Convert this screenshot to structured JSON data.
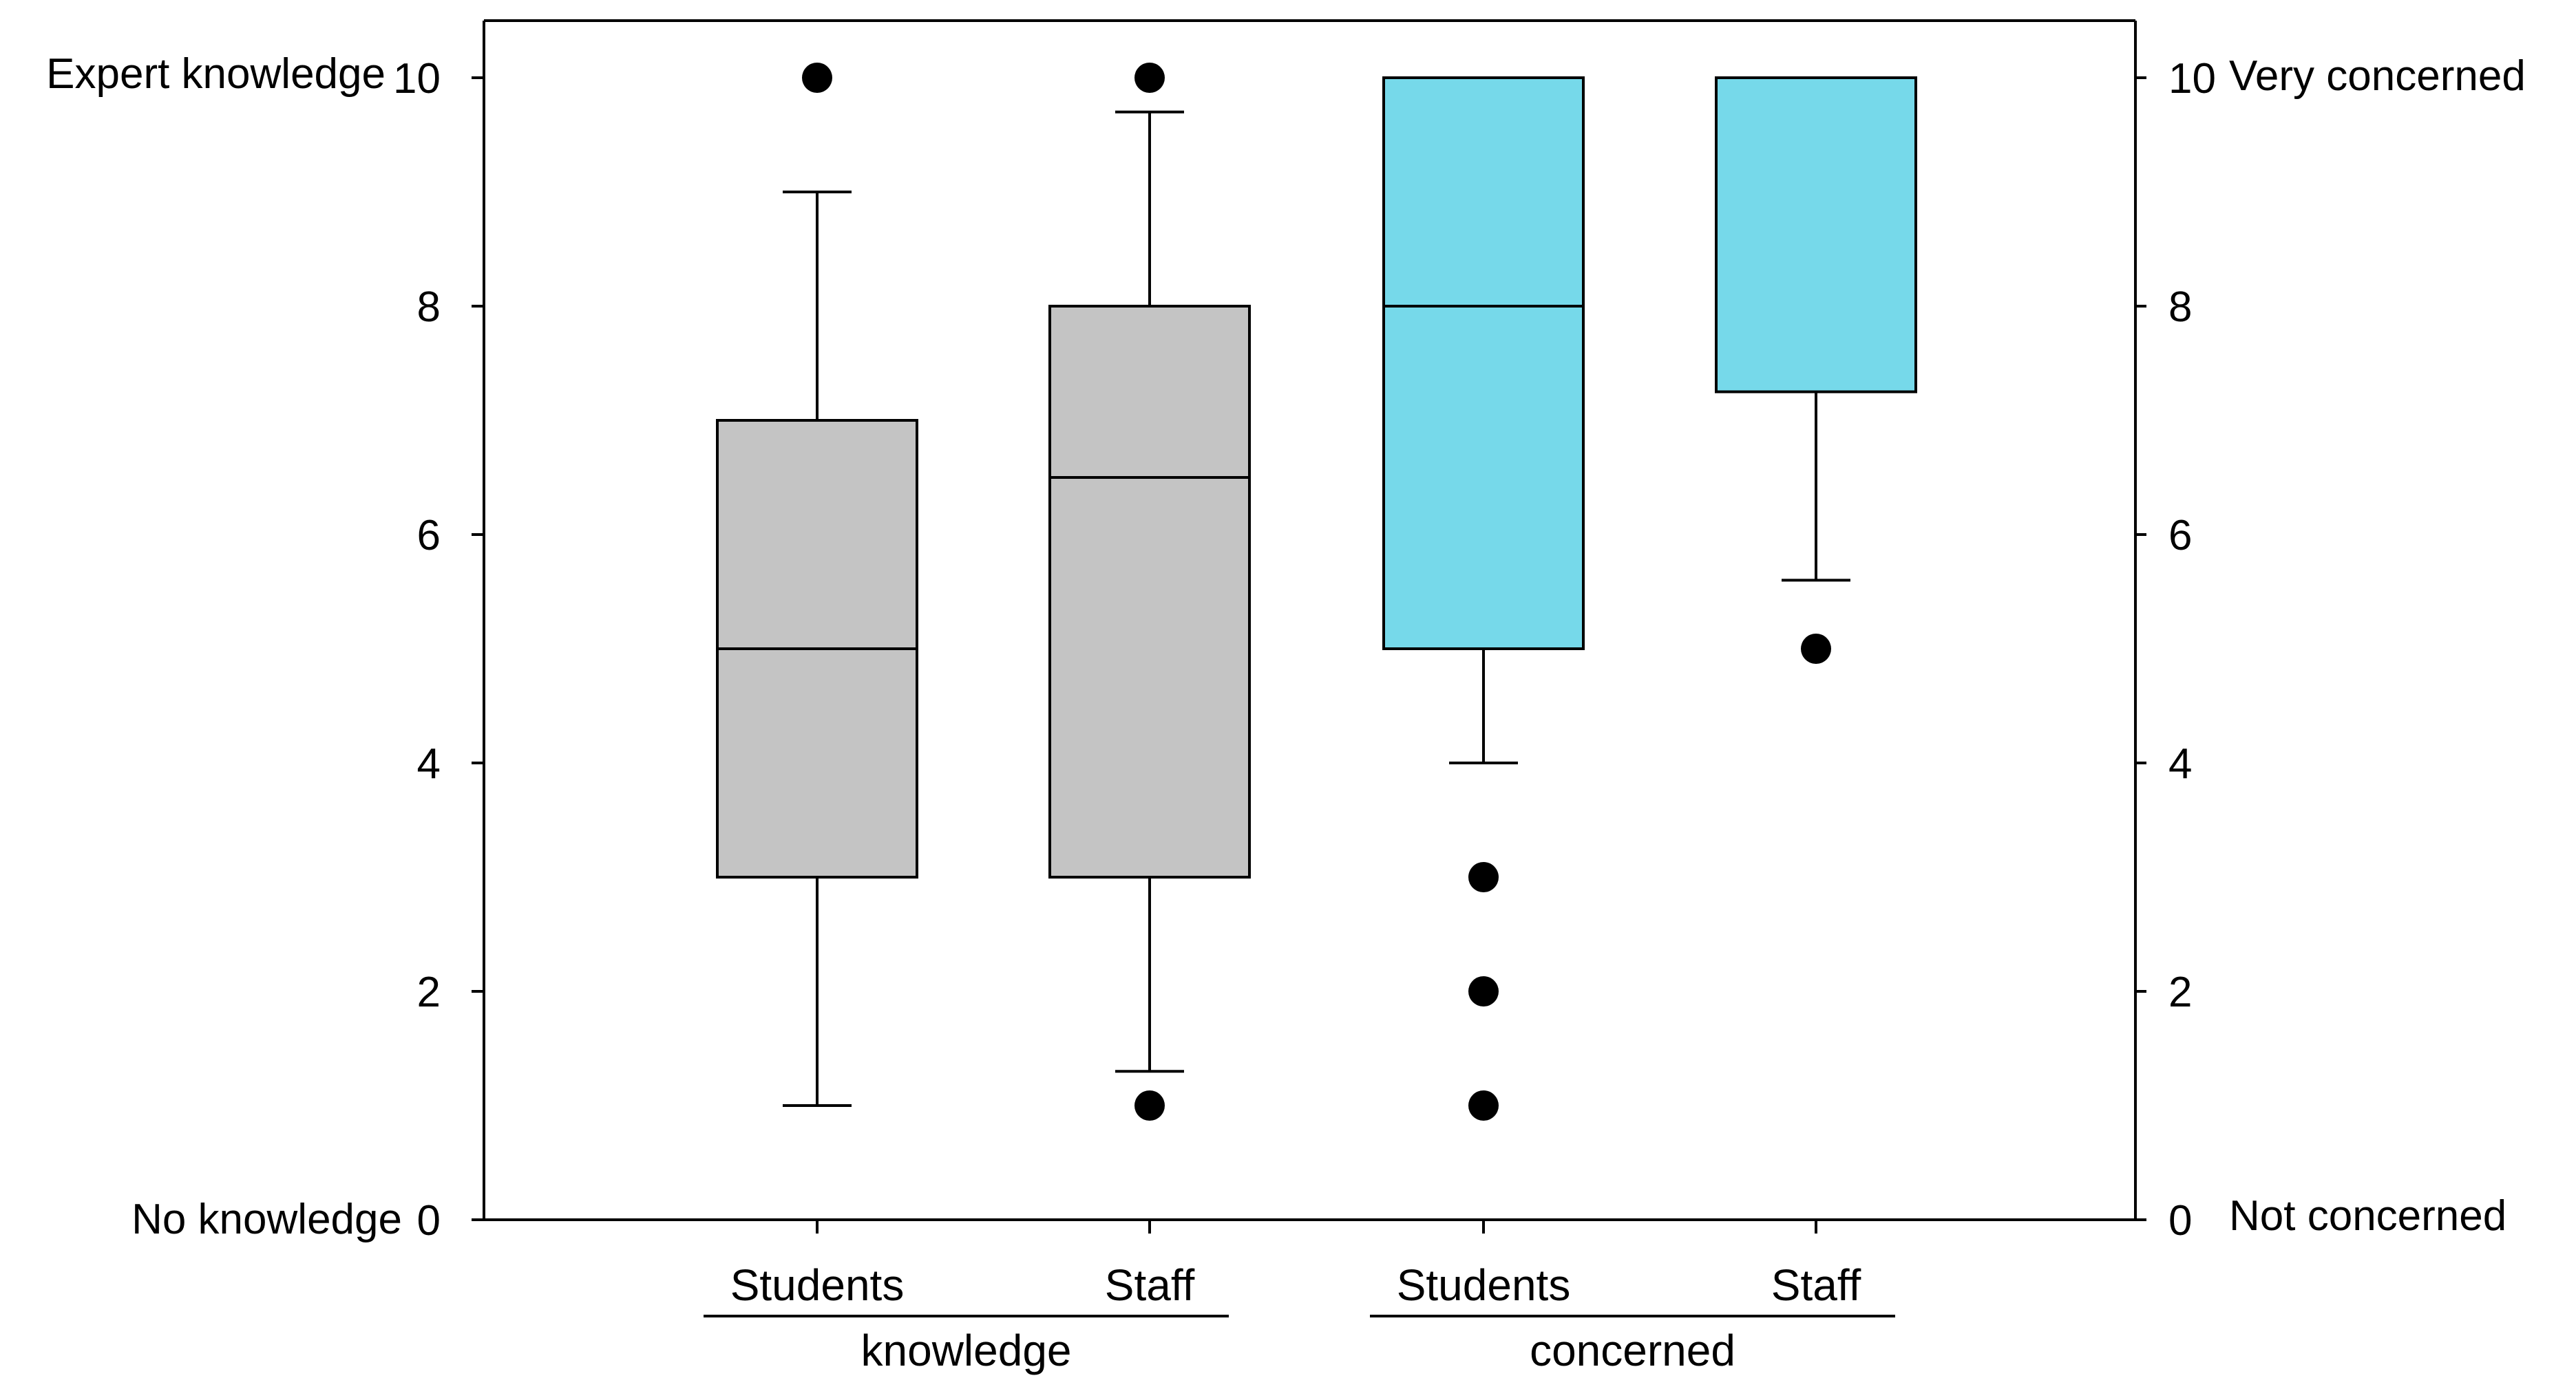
{
  "chart_data": {
    "type": "boxplot",
    "y_left": {
      "ticks": [
        0,
        2,
        4,
        6,
        8,
        10
      ],
      "range": [
        0,
        10.5
      ],
      "top_label": "Expert knowledge",
      "bottom_label": "No knowledge"
    },
    "y_right": {
      "ticks": [
        0,
        2,
        4,
        6,
        8,
        10
      ],
      "range": [
        0,
        10.5
      ],
      "top_label": "Very concerned",
      "bottom_label": "Not concerned"
    },
    "groups": [
      {
        "name": "knowledge",
        "categories": [
          "Students",
          "Staff"
        ]
      },
      {
        "name": "concerned",
        "categories": [
          "Students",
          "Staff"
        ]
      }
    ],
    "boxes": [
      {
        "group": "knowledge",
        "category": "Students",
        "whisker_low": 1,
        "q1": 3,
        "median": 5,
        "q3": 7,
        "whisker_high": 9,
        "outliers": [
          10
        ],
        "color": "#c4c4c4"
      },
      {
        "group": "knowledge",
        "category": "Staff",
        "whisker_low": 1.3,
        "q1": 3,
        "median": 6.5,
        "q3": 8,
        "whisker_high": 9.7,
        "outliers": [
          10,
          1
        ],
        "color": "#c4c4c4"
      },
      {
        "group": "concerned",
        "category": "Students",
        "whisker_low": 4,
        "q1": 5,
        "median": 8,
        "q3": 10,
        "whisker_high": 10,
        "outliers": [
          3,
          2,
          1
        ],
        "color": "#76d9ea"
      },
      {
        "group": "concerned",
        "category": "Staff",
        "whisker_low": 5.6,
        "q1": 7.25,
        "median": 10,
        "q3": 10,
        "whisker_high": 10,
        "outliers": [
          5
        ],
        "color": "#76d9ea"
      }
    ]
  }
}
